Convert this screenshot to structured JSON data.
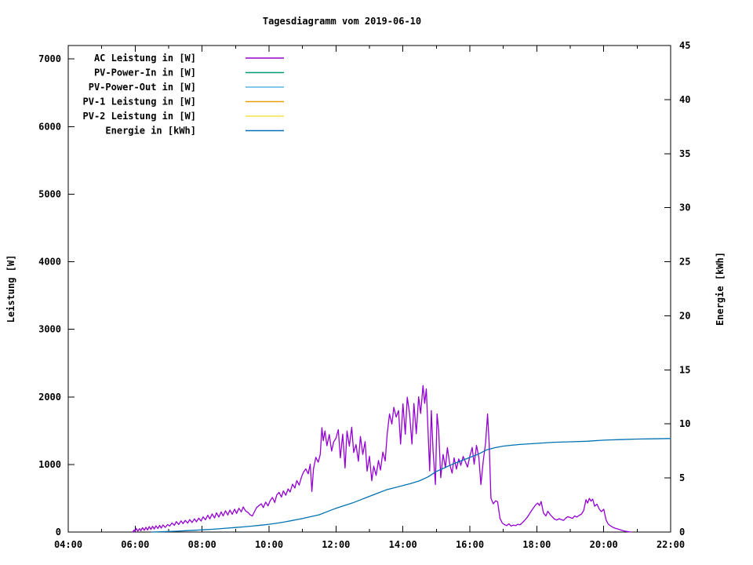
{
  "chart_data": {
    "type": "line",
    "title": "Tagesdiagramm vom 2019-06-10",
    "xlabel": "",
    "ylabel": "Leistung [W]",
    "y2label": "Energie [kWh]",
    "x_axis": {
      "min": 4,
      "max": 22,
      "major_ticks": [
        4,
        6,
        8,
        10,
        12,
        14,
        16,
        18,
        20,
        22
      ],
      "major_labels": [
        "04:00",
        "06:00",
        "08:00",
        "10:00",
        "12:00",
        "14:00",
        "16:00",
        "18:00",
        "20:00",
        "22:00"
      ],
      "minor_step": 1
    },
    "y_axis": {
      "min": 0,
      "max": 7200,
      "ticks": [
        0,
        1000,
        2000,
        3000,
        4000,
        5000,
        6000,
        7000
      ],
      "tick_labels": [
        "0",
        "1000",
        "2000",
        "3000",
        "4000",
        "5000",
        "6000",
        "7000"
      ]
    },
    "y2_axis": {
      "min": 0,
      "max": 45,
      "ticks": [
        0,
        5,
        10,
        15,
        20,
        25,
        30,
        35,
        40,
        45
      ],
      "tick_labels": [
        "0",
        "5",
        "10",
        "15",
        "20",
        "25",
        "30",
        "35",
        "40",
        "45"
      ]
    },
    "grid": false,
    "legend_position": "top-left-inside",
    "series": [
      {
        "name": "AC Leistung in [W]",
        "color": "#9400d3",
        "axis": "left",
        "points": [
          [
            5.92,
            0
          ],
          [
            5.97,
            30
          ],
          [
            6.0,
            10
          ],
          [
            6.03,
            55
          ],
          [
            6.08,
            15
          ],
          [
            6.13,
            50
          ],
          [
            6.17,
            20
          ],
          [
            6.22,
            65
          ],
          [
            6.27,
            25
          ],
          [
            6.32,
            70
          ],
          [
            6.37,
            30
          ],
          [
            6.42,
            80
          ],
          [
            6.47,
            38
          ],
          [
            6.52,
            85
          ],
          [
            6.57,
            45
          ],
          [
            6.62,
            92
          ],
          [
            6.68,
            52
          ],
          [
            6.73,
            98
          ],
          [
            6.78,
            58
          ],
          [
            6.83,
            105
          ],
          [
            6.9,
            68
          ],
          [
            6.97,
            112
          ],
          [
            7.03,
            88
          ],
          [
            7.1,
            135
          ],
          [
            7.17,
            100
          ],
          [
            7.23,
            155
          ],
          [
            7.3,
            112
          ],
          [
            7.37,
            165
          ],
          [
            7.43,
            125
          ],
          [
            7.5,
            172
          ],
          [
            7.57,
            132
          ],
          [
            7.63,
            185
          ],
          [
            7.7,
            142
          ],
          [
            7.77,
            195
          ],
          [
            7.83,
            152
          ],
          [
            7.9,
            205
          ],
          [
            7.97,
            162
          ],
          [
            8.03,
            225
          ],
          [
            8.1,
            182
          ],
          [
            8.17,
            248
          ],
          [
            8.23,
            195
          ],
          [
            8.3,
            268
          ],
          [
            8.37,
            208
          ],
          [
            8.43,
            285
          ],
          [
            8.5,
            222
          ],
          [
            8.57,
            298
          ],
          [
            8.63,
            238
          ],
          [
            8.7,
            315
          ],
          [
            8.77,
            252
          ],
          [
            8.83,
            325
          ],
          [
            8.9,
            262
          ],
          [
            8.97,
            338
          ],
          [
            9.03,
            275
          ],
          [
            9.1,
            352
          ],
          [
            9.17,
            298
          ],
          [
            9.23,
            372
          ],
          [
            9.3,
            312
          ],
          [
            9.37,
            292
          ],
          [
            9.43,
            258
          ],
          [
            9.5,
            238
          ],
          [
            9.57,
            308
          ],
          [
            9.63,
            362
          ],
          [
            9.7,
            392
          ],
          [
            9.77,
            418
          ],
          [
            9.83,
            362
          ],
          [
            9.9,
            442
          ],
          [
            9.97,
            388
          ],
          [
            10.03,
            462
          ],
          [
            10.1,
            512
          ],
          [
            10.17,
            438
          ],
          [
            10.23,
            548
          ],
          [
            10.3,
            588
          ],
          [
            10.37,
            518
          ],
          [
            10.43,
            608
          ],
          [
            10.5,
            545
          ],
          [
            10.57,
            638
          ],
          [
            10.63,
            592
          ],
          [
            10.7,
            708
          ],
          [
            10.77,
            652
          ],
          [
            10.83,
            762
          ],
          [
            10.9,
            695
          ],
          [
            10.97,
            815
          ],
          [
            11.03,
            885
          ],
          [
            11.1,
            935
          ],
          [
            11.17,
            862
          ],
          [
            11.23,
            1005
          ],
          [
            11.28,
            600
          ],
          [
            11.33,
            938
          ],
          [
            11.4,
            1105
          ],
          [
            11.47,
            1032
          ],
          [
            11.53,
            1148
          ],
          [
            11.58,
            1545
          ],
          [
            11.62,
            1352
          ],
          [
            11.67,
            1495
          ],
          [
            11.73,
            1278
          ],
          [
            11.8,
            1442
          ],
          [
            11.87,
            1198
          ],
          [
            11.93,
            1332
          ],
          [
            12.0,
            1388
          ],
          [
            12.07,
            1515
          ],
          [
            12.13,
            1098
          ],
          [
            12.2,
            1448
          ],
          [
            12.27,
            948
          ],
          [
            12.33,
            1495
          ],
          [
            12.4,
            1272
          ],
          [
            12.47,
            1552
          ],
          [
            12.53,
            1178
          ],
          [
            12.6,
            1295
          ],
          [
            12.67,
            1048
          ],
          [
            12.73,
            1415
          ],
          [
            12.8,
            1148
          ],
          [
            12.87,
            1338
          ],
          [
            12.93,
            902
          ],
          [
            13.0,
            1122
          ],
          [
            13.07,
            758
          ],
          [
            13.13,
            975
          ],
          [
            13.2,
            838
          ],
          [
            13.27,
            1058
          ],
          [
            13.33,
            918
          ],
          [
            13.4,
            1185
          ],
          [
            13.47,
            1052
          ],
          [
            13.53,
            1448
          ],
          [
            13.6,
            1748
          ],
          [
            13.67,
            1598
          ],
          [
            13.73,
            1845
          ],
          [
            13.8,
            1702
          ],
          [
            13.87,
            1798
          ],
          [
            13.93,
            1302
          ],
          [
            14.0,
            1898
          ],
          [
            14.07,
            1448
          ],
          [
            14.13,
            1995
          ],
          [
            14.2,
            1752
          ],
          [
            14.27,
            1302
          ],
          [
            14.33,
            1902
          ],
          [
            14.4,
            1455
          ],
          [
            14.47,
            2002
          ],
          [
            14.53,
            1755
          ],
          [
            14.6,
            2168
          ],
          [
            14.65,
            1905
          ],
          [
            14.7,
            2118
          ],
          [
            14.75,
            1502
          ],
          [
            14.8,
            905
          ],
          [
            14.85,
            1798
          ],
          [
            14.9,
            1205
          ],
          [
            14.97,
            702
          ],
          [
            15.02,
            1748
          ],
          [
            15.07,
            1498
          ],
          [
            15.13,
            805
          ],
          [
            15.2,
            1148
          ],
          [
            15.27,
            952
          ],
          [
            15.33,
            1248
          ],
          [
            15.4,
            1002
          ],
          [
            15.47,
            872
          ],
          [
            15.53,
            1098
          ],
          [
            15.6,
            932
          ],
          [
            15.67,
            1082
          ],
          [
            15.73,
            988
          ],
          [
            15.8,
            1118
          ],
          [
            15.87,
            1035
          ],
          [
            15.93,
            962
          ],
          [
            16.0,
            1122
          ],
          [
            16.07,
            1252
          ],
          [
            16.13,
            1002
          ],
          [
            16.2,
            1282
          ],
          [
            16.27,
            1102
          ],
          [
            16.33,
            702
          ],
          [
            16.4,
            1052
          ],
          [
            16.47,
            1322
          ],
          [
            16.53,
            1748
          ],
          [
            16.58,
            1298
          ],
          [
            16.63,
            502
          ],
          [
            16.7,
            418
          ],
          [
            16.77,
            462
          ],
          [
            16.83,
            448
          ],
          [
            16.9,
            202
          ],
          [
            16.97,
            132
          ],
          [
            17.03,
            112
          ],
          [
            17.1,
            95
          ],
          [
            17.17,
            122
          ],
          [
            17.23,
            88
          ],
          [
            17.3,
            102
          ],
          [
            17.37,
            95
          ],
          [
            17.43,
            115
          ],
          [
            17.5,
            108
          ],
          [
            17.57,
            138
          ],
          [
            17.63,
            168
          ],
          [
            17.7,
            208
          ],
          [
            17.77,
            258
          ],
          [
            17.83,
            308
          ],
          [
            17.9,
            358
          ],
          [
            17.97,
            405
          ],
          [
            18.03,
            428
          ],
          [
            18.08,
            392
          ],
          [
            18.13,
            452
          ],
          [
            18.2,
            282
          ],
          [
            18.27,
            238
          ],
          [
            18.33,
            308
          ],
          [
            18.4,
            258
          ],
          [
            18.47,
            222
          ],
          [
            18.53,
            192
          ],
          [
            18.6,
            178
          ],
          [
            18.67,
            198
          ],
          [
            18.73,
            185
          ],
          [
            18.8,
            172
          ],
          [
            18.87,
            208
          ],
          [
            18.93,
            228
          ],
          [
            19.0,
            215
          ],
          [
            19.07,
            202
          ],
          [
            19.13,
            238
          ],
          [
            19.2,
            222
          ],
          [
            19.27,
            248
          ],
          [
            19.33,
            262
          ],
          [
            19.4,
            318
          ],
          [
            19.47,
            478
          ],
          [
            19.52,
            428
          ],
          [
            19.57,
            498
          ],
          [
            19.62,
            458
          ],
          [
            19.67,
            488
          ],
          [
            19.73,
            382
          ],
          [
            19.8,
            412
          ],
          [
            19.87,
            338
          ],
          [
            19.93,
            302
          ],
          [
            20.0,
            338
          ],
          [
            20.07,
            178
          ],
          [
            20.13,
            122
          ],
          [
            20.2,
            92
          ],
          [
            20.27,
            72
          ],
          [
            20.33,
            58
          ],
          [
            20.4,
            48
          ],
          [
            20.47,
            38
          ],
          [
            20.53,
            28
          ],
          [
            20.6,
            18
          ],
          [
            20.67,
            10
          ],
          [
            20.75,
            4
          ],
          [
            20.83,
            0
          ]
        ]
      },
      {
        "name": "PV-Power-In in [W]",
        "color": "#009e73",
        "axis": "left",
        "points": []
      },
      {
        "name": "PV-Power-Out in [W]",
        "color": "#56b4e9",
        "axis": "left",
        "points": []
      },
      {
        "name": "PV-1 Leistung in [W]",
        "color": "#e69f00",
        "axis": "left",
        "points": []
      },
      {
        "name": "PV-2 Leistung in [W]",
        "color": "#f0e442",
        "axis": "left",
        "points": []
      },
      {
        "name": "Energie in [kWh]",
        "color": "#0072b2",
        "axis": "right",
        "points": [
          [
            6.5,
            0
          ],
          [
            6.75,
            0.02
          ],
          [
            7.0,
            0.05
          ],
          [
            7.25,
            0.08
          ],
          [
            7.5,
            0.12
          ],
          [
            7.75,
            0.16
          ],
          [
            8.0,
            0.2
          ],
          [
            8.25,
            0.25
          ],
          [
            8.5,
            0.3
          ],
          [
            8.75,
            0.36
          ],
          [
            9.0,
            0.42
          ],
          [
            9.25,
            0.48
          ],
          [
            9.5,
            0.55
          ],
          [
            9.75,
            0.63
          ],
          [
            10.0,
            0.72
          ],
          [
            10.25,
            0.83
          ],
          [
            10.5,
            0.95
          ],
          [
            10.75,
            1.1
          ],
          [
            11.0,
            1.25
          ],
          [
            11.25,
            1.42
          ],
          [
            11.5,
            1.6
          ],
          [
            11.75,
            1.9
          ],
          [
            12.0,
            2.2
          ],
          [
            12.25,
            2.45
          ],
          [
            12.5,
            2.7
          ],
          [
            12.75,
            3.0
          ],
          [
            13.0,
            3.3
          ],
          [
            13.25,
            3.6
          ],
          [
            13.5,
            3.9
          ],
          [
            13.75,
            4.1
          ],
          [
            14.0,
            4.3
          ],
          [
            14.25,
            4.5
          ],
          [
            14.5,
            4.75
          ],
          [
            14.75,
            5.1
          ],
          [
            15.0,
            5.6
          ],
          [
            15.25,
            5.95
          ],
          [
            15.5,
            6.3
          ],
          [
            15.75,
            6.6
          ],
          [
            16.0,
            6.9
          ],
          [
            16.25,
            7.2
          ],
          [
            16.5,
            7.6
          ],
          [
            16.75,
            7.8
          ],
          [
            17.0,
            7.95
          ],
          [
            17.25,
            8.03
          ],
          [
            17.5,
            8.1
          ],
          [
            18.0,
            8.2
          ],
          [
            18.5,
            8.3
          ],
          [
            19.0,
            8.35
          ],
          [
            19.5,
            8.4
          ],
          [
            20.0,
            8.5
          ],
          [
            20.5,
            8.55
          ],
          [
            21.0,
            8.6
          ],
          [
            21.5,
            8.62
          ],
          [
            22.0,
            8.65
          ]
        ]
      }
    ]
  },
  "colors": {
    "background": "#ffffff",
    "foreground": "#000000",
    "ac_leistung": "#9400d3",
    "pv_power_in": "#009e73",
    "pv_power_out": "#56b4e9",
    "pv1_leistung": "#e69f00",
    "pv2_leistung": "#f0e442",
    "energie": "#0072b2"
  }
}
